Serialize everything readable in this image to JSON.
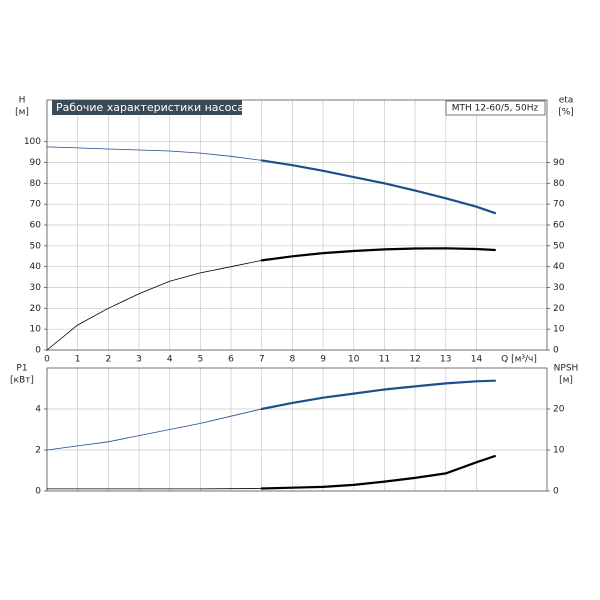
{
  "chart_data": [
    {
      "type": "line",
      "title": "Рабочие характеристики насоса",
      "annotation": "MTH 12-60/5, 50Hz",
      "ylabel": "H",
      "yunit": "[м]",
      "y2label": "eta",
      "y2unit": "[%]",
      "xlabel": "Q [м³/ч]",
      "x": [
        0,
        1,
        2,
        3,
        4,
        5,
        6,
        7,
        8,
        9,
        10,
        11,
        12,
        13,
        14,
        14.6
      ],
      "xlim": [
        0,
        16.3
      ],
      "xticks": [
        0,
        1,
        2,
        3,
        4,
        5,
        6,
        7,
        8,
        9,
        10,
        11,
        12,
        13,
        14
      ],
      "ylim": [
        0,
        120
      ],
      "yticks": [
        0,
        10,
        20,
        30,
        40,
        50,
        60,
        70,
        80,
        90,
        100
      ],
      "y2lim": [
        0,
        120
      ],
      "y2ticks": [
        0,
        10,
        20,
        30,
        40,
        50,
        60,
        70,
        80,
        90
      ],
      "grid": true,
      "operating_range": [
        7,
        14.6
      ],
      "series": [
        {
          "name": "H",
          "color": "#1f4e8c",
          "values": [
            97.5,
            97,
            96.5,
            96,
            95.5,
            94.5,
            93,
            91,
            88.7,
            86,
            83,
            80,
            76.5,
            72.8,
            68.8,
            65.7
          ]
        },
        {
          "name": "eta",
          "color": "#000000",
          "axis": "y2",
          "values": [
            0,
            12,
            20,
            27,
            33,
            37,
            40,
            43,
            45,
            46.5,
            47.5,
            48.3,
            48.7,
            48.8,
            48.5,
            48
          ]
        }
      ]
    },
    {
      "type": "line",
      "ylabel": "P1",
      "yunit": "[кВт]",
      "y2label": "NPSH",
      "y2unit": "[м]",
      "x": [
        0,
        1,
        2,
        3,
        4,
        5,
        6,
        7,
        8,
        9,
        10,
        11,
        12,
        13,
        14,
        14.6
      ],
      "xlim": [
        0,
        16.3
      ],
      "ylim": [
        0,
        6
      ],
      "yticks": [
        0,
        2,
        4
      ],
      "y2lim": [
        0,
        30
      ],
      "y2ticks": [
        0,
        10,
        20
      ],
      "grid": true,
      "operating_range": [
        7,
        14.6
      ],
      "series": [
        {
          "name": "P1",
          "color": "#1f4e8c",
          "values": [
            2.0,
            2.2,
            2.4,
            2.7,
            3.0,
            3.3,
            3.65,
            4.0,
            4.3,
            4.55,
            4.75,
            4.95,
            5.1,
            5.25,
            5.35,
            5.38
          ]
        },
        {
          "name": "NPSH",
          "color": "#000000",
          "axis": "y2",
          "values": [
            0.5,
            0.5,
            0.5,
            0.5,
            0.5,
            0.5,
            0.55,
            0.6,
            0.8,
            1.0,
            1.5,
            2.3,
            3.2,
            4.3,
            7.0,
            8.5
          ]
        }
      ]
    }
  ]
}
